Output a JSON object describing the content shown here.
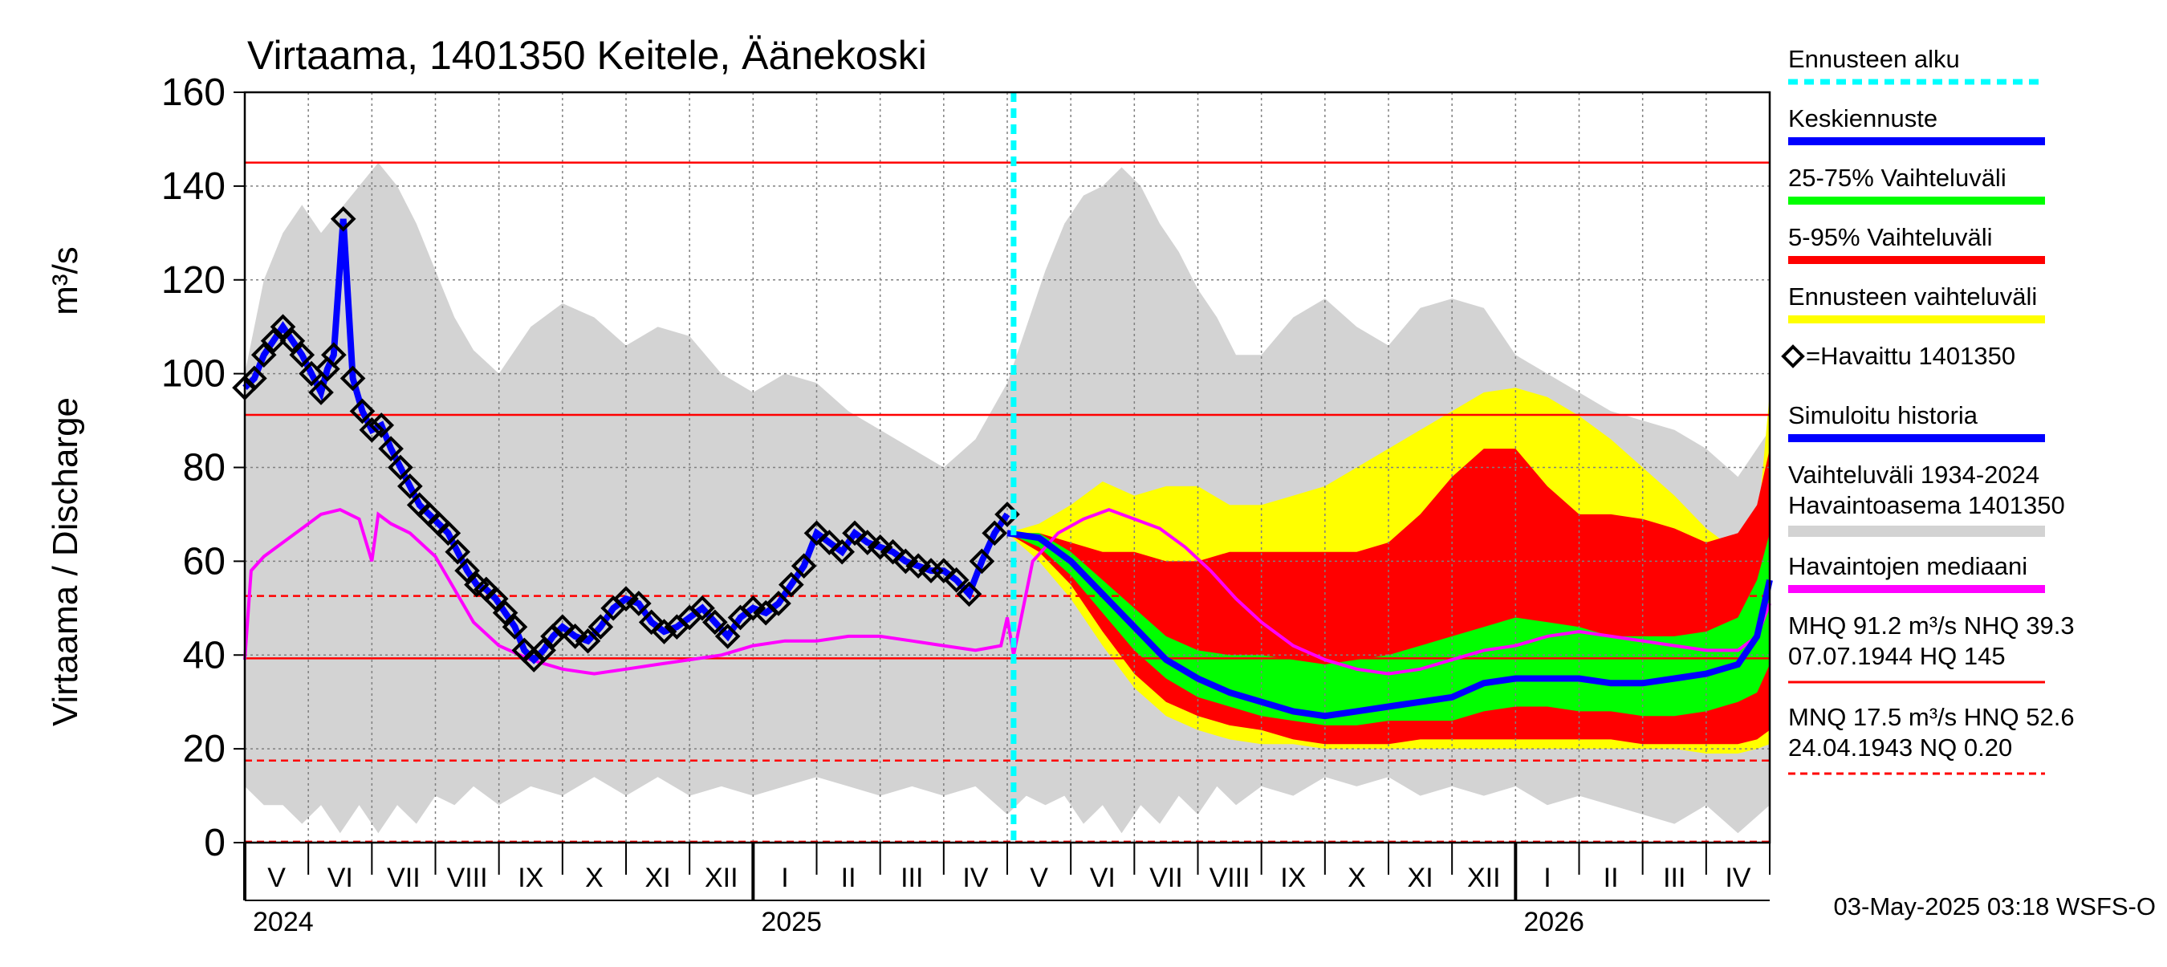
{
  "chart_data": {
    "type": "line",
    "title": "Virtaama, 1401350 Keitele, Äänekoski",
    "ylabel": "Virtaama / Discharge",
    "yunit": "m³/s",
    "ylim": [
      0,
      160
    ],
    "yticks": [
      "0",
      "20",
      "40",
      "60",
      "80",
      "100",
      "120",
      "140",
      "160"
    ],
    "yticks_values": [
      0,
      20,
      40,
      60,
      80,
      100,
      120,
      140,
      160
    ],
    "xlim": [
      0,
      24
    ],
    "month_labels": [
      "V",
      "VI",
      "VII",
      "VIII",
      "IX",
      "X",
      "XI",
      "XII",
      "I",
      "II",
      "III",
      "IV",
      "V",
      "VI",
      "VII",
      "VIII",
      "IX",
      "X",
      "XI",
      "XII",
      "I",
      "II",
      "III",
      "IV"
    ],
    "year_labels": [
      {
        "label": "2024",
        "at": 0
      },
      {
        "label": "2025",
        "at": 8
      },
      {
        "label": "2026",
        "at": 20
      }
    ],
    "forecast_start": 12.1,
    "reference_lines": [
      {
        "value": 145,
        "style": "solid"
      },
      {
        "value": 91.2,
        "style": "solid"
      },
      {
        "value": 52.6,
        "style": "dashed"
      },
      {
        "value": 39.3,
        "style": "solid"
      },
      {
        "value": 17.5,
        "style": "dashed"
      },
      {
        "value": 0.2,
        "style": "dashed"
      }
    ],
    "hist_range": {
      "name": "Vaihteluväli 1934-2024 Havaintoasema 1401350",
      "x": [
        0,
        0.3,
        0.6,
        0.9,
        1.2,
        1.5,
        1.8,
        2.1,
        2.4,
        2.7,
        3.0,
        3.3,
        3.6,
        4.0,
        4.5,
        5.0,
        5.5,
        6.0,
        6.5,
        7.0,
        7.5,
        8.0,
        8.5,
        9.0,
        9.5,
        10.0,
        10.5,
        11.0,
        11.5,
        12.0,
        12.3,
        12.6,
        12.9,
        13.2,
        13.5,
        13.8,
        14.1,
        14.4,
        14.7,
        15.0,
        15.3,
        15.6,
        16.0,
        16.5,
        17.0,
        17.5,
        18.0,
        18.5,
        19.0,
        19.5,
        20.0,
        20.5,
        21.0,
        21.5,
        22.0,
        22.5,
        23.0,
        23.5,
        24.0
      ],
      "upper": [
        100,
        120,
        130,
        136,
        130,
        135,
        140,
        145,
        140,
        132,
        122,
        112,
        105,
        100,
        110,
        115,
        112,
        106,
        110,
        108,
        100,
        96,
        100,
        98,
        92,
        88,
        84,
        80,
        86,
        98,
        110,
        122,
        132,
        138,
        140,
        144,
        140,
        132,
        126,
        118,
        112,
        104,
        104,
        112,
        116,
        110,
        106,
        114,
        116,
        114,
        104,
        100,
        96,
        92,
        90,
        88,
        84,
        78,
        88
      ],
      "lower": [
        12,
        8,
        8,
        4,
        8,
        2,
        8,
        2,
        8,
        4,
        10,
        8,
        12,
        8,
        12,
        10,
        14,
        10,
        14,
        10,
        12,
        10,
        12,
        14,
        12,
        10,
        12,
        10,
        12,
        6,
        10,
        8,
        10,
        4,
        8,
        2,
        8,
        4,
        10,
        6,
        12,
        8,
        12,
        10,
        14,
        12,
        14,
        10,
        12,
        10,
        12,
        8,
        10,
        8,
        6,
        4,
        8,
        2,
        8
      ]
    },
    "median": {
      "name": "Havaintojen mediaani",
      "x": [
        0,
        0.1,
        0.3,
        0.6,
        0.9,
        1.2,
        1.5,
        1.8,
        2.0,
        2.1,
        2.3,
        2.6,
        3.0,
        3.3,
        3.6,
        4.0,
        4.5,
        5.0,
        5.5,
        6.0,
        6.5,
        7.0,
        7.5,
        8.0,
        8.5,
        9.0,
        9.5,
        10.0,
        10.5,
        11.0,
        11.5,
        11.9,
        12.0,
        12.1,
        12.4,
        12.8,
        13.2,
        13.6,
        14.0,
        14.4,
        14.8,
        15.2,
        15.6,
        16.0,
        16.5,
        17.0,
        17.5,
        18.0,
        18.5,
        19.0,
        19.5,
        20.0,
        20.5,
        21.0,
        21.5,
        22.0,
        22.5,
        23.0,
        23.5,
        23.8,
        24.0
      ],
      "y": [
        39,
        58,
        61,
        64,
        67,
        70,
        71,
        69,
        60,
        70,
        68,
        66,
        61,
        54,
        47,
        42,
        39,
        37,
        36,
        37,
        38,
        39,
        40,
        42,
        43,
        43,
        44,
        44,
        43,
        42,
        41,
        42,
        48,
        40,
        60,
        66,
        69,
        71,
        69,
        67,
        63,
        58,
        52,
        47,
        42,
        39,
        37,
        36,
        37,
        39,
        41,
        42,
        44,
        45,
        44,
        43,
        42,
        41,
        41,
        44,
        51
      ]
    },
    "observed": {
      "name": "=Havaittu 1401350",
      "x": [
        0,
        0.15,
        0.3,
        0.45,
        0.6,
        0.75,
        0.9,
        1.05,
        1.2,
        1.3,
        1.4,
        1.55,
        1.7,
        1.85,
        2.0,
        2.15,
        2.3,
        2.45,
        2.6,
        2.75,
        2.9,
        3.05,
        3.2,
        3.35,
        3.5,
        3.65,
        3.8,
        3.95,
        4.1,
        4.25,
        4.4,
        4.55,
        4.7,
        4.85,
        5.0,
        5.2,
        5.4,
        5.6,
        5.8,
        6.0,
        6.2,
        6.4,
        6.6,
        6.8,
        7.0,
        7.2,
        7.4,
        7.6,
        7.8,
        8.0,
        8.2,
        8.4,
        8.6,
        8.8,
        9.0,
        9.2,
        9.4,
        9.6,
        9.8,
        10.0,
        10.2,
        10.4,
        10.6,
        10.8,
        11.0,
        11.2,
        11.4,
        11.6,
        11.8,
        12.0
      ],
      "y": [
        97,
        99,
        104,
        107,
        110,
        107,
        104,
        100,
        96,
        101,
        104,
        133,
        99,
        92,
        88,
        89,
        84,
        80,
        76,
        72,
        70,
        68,
        66,
        62,
        58,
        55,
        54,
        52,
        49,
        46,
        41,
        39,
        41,
        44,
        46,
        44,
        43,
        46,
        50,
        52,
        51,
        47,
        45,
        46,
        48,
        50,
        47,
        44,
        48,
        50,
        49,
        51,
        55,
        59,
        66,
        64,
        62,
        66,
        64,
        63,
        62,
        60,
        59,
        58,
        58,
        56,
        53,
        60,
        66,
        70
      ]
    },
    "forecast_mean": {
      "name": "Keskiennuste",
      "x": [
        12.0,
        12.5,
        13.0,
        13.5,
        14.0,
        14.5,
        15.0,
        15.5,
        16.0,
        16.5,
        17.0,
        17.5,
        18.0,
        18.5,
        19.0,
        19.5,
        20.0,
        20.5,
        21.0,
        21.5,
        22.0,
        22.5,
        23.0,
        23.5,
        23.8,
        24.0
      ],
      "y": [
        66,
        65,
        60,
        53,
        46,
        39,
        35,
        32,
        30,
        28,
        27,
        28,
        29,
        30,
        31,
        34,
        35,
        35,
        35,
        34,
        34,
        35,
        36,
        38,
        44,
        56
      ]
    },
    "band_25_75": {
      "name": "25-75% Vaihteluväli",
      "x": [
        12.0,
        12.5,
        13.0,
        13.5,
        14.0,
        14.5,
        15.0,
        15.5,
        16.0,
        16.5,
        17.0,
        17.5,
        18.0,
        18.5,
        19.0,
        19.5,
        20.0,
        20.5,
        21.0,
        21.5,
        22.0,
        22.5,
        23.0,
        23.5,
        23.8,
        24.0
      ],
      "upper": [
        66,
        66,
        62,
        56,
        50,
        44,
        41,
        40,
        40,
        39,
        38,
        39,
        40,
        42,
        44,
        46,
        48,
        47,
        46,
        44,
        44,
        44,
        45,
        48,
        56,
        66
      ],
      "lower": [
        66,
        63,
        57,
        49,
        41,
        35,
        31,
        29,
        27,
        26,
        25,
        25,
        26,
        26,
        26,
        28,
        29,
        29,
        28,
        28,
        27,
        27,
        28,
        30,
        32,
        38
      ]
    },
    "band_5_95": {
      "name": "5-95% Vaihteluväli",
      "x": [
        12.0,
        12.5,
        13.0,
        13.5,
        14.0,
        14.5,
        15.0,
        15.5,
        16.0,
        16.5,
        17.0,
        17.5,
        18.0,
        18.5,
        19.0,
        19.5,
        20.0,
        20.5,
        21.0,
        21.5,
        22.0,
        22.5,
        23.0,
        23.5,
        23.8,
        24.0
      ],
      "upper": [
        66,
        66,
        64,
        62,
        62,
        60,
        60,
        62,
        62,
        62,
        62,
        62,
        64,
        70,
        78,
        84,
        84,
        76,
        70,
        70,
        69,
        67,
        64,
        66,
        72,
        84
      ],
      "lower": [
        66,
        62,
        55,
        45,
        36,
        30,
        27,
        25,
        24,
        22,
        21,
        21,
        21,
        22,
        22,
        22,
        22,
        22,
        22,
        22,
        21,
        21,
        21,
        21,
        22,
        24
      ]
    },
    "forecast_range": {
      "name": "Ennusteen vaihteluväli",
      "x": [
        12.0,
        12.5,
        13.0,
        13.5,
        14.0,
        14.5,
        15.0,
        15.5,
        16.0,
        16.5,
        17.0,
        17.5,
        18.0,
        18.5,
        19.0,
        19.5,
        20.0,
        20.5,
        21.0,
        21.5,
        22.0,
        22.5,
        23.0,
        23.5,
        23.8,
        24.0
      ],
      "upper": [
        66,
        68,
        72,
        77,
        74,
        76,
        76,
        72,
        72,
        74,
        76,
        80,
        84,
        88,
        92,
        96,
        97,
        95,
        91,
        86,
        80,
        74,
        67,
        62,
        66,
        96
      ],
      "lower": [
        66,
        60,
        52,
        42,
        33,
        27,
        24,
        22,
        21,
        21,
        20,
        20,
        20,
        20,
        20,
        20,
        20,
        20,
        20,
        20,
        20,
        20,
        19,
        19,
        20,
        21
      ]
    },
    "legend": [
      {
        "label": "Ennusteen alku",
        "color": "#00ffff",
        "style": "dashed"
      },
      {
        "label": "Keskiennuste",
        "color": "#0000ff"
      },
      {
        "label": "25-75% Vaihteluväli",
        "color": "#00ff00"
      },
      {
        "label": "5-95% Vaihteluväli",
        "color": "#ff0000"
      },
      {
        "label": "Ennusteen vaihteluväli",
        "color": "#ffff00"
      },
      {
        "label": "=Havaittu 1401350",
        "color": "#000000",
        "style": "marker"
      },
      {
        "label": "Simuloitu historia",
        "color": "#0000ff"
      },
      {
        "label": "Vaihteluväli 1934-2024",
        "label2": " Havaintoasema 1401350",
        "color": "#d3d3d3"
      },
      {
        "label": "Havaintojen mediaani",
        "color": "#ff00ff"
      },
      {
        "label": "MHQ 91.2 m³/s NHQ 39.3",
        "label2": "07.07.1944 HQ  145",
        "color": "#ff0000"
      },
      {
        "label": "MNQ 17.5 m³/s HNQ 52.6",
        "label2": "24.04.1943 NQ 0.20",
        "color": "#ff0000",
        "style": "dashed"
      }
    ],
    "colors": {
      "grey": "#d3d3d3",
      "yellow": "#ffff00",
      "red": "#ff0000",
      "green": "#00ff00",
      "blue": "#0000ff",
      "magenta": "#ff00ff",
      "cyan": "#00ffff",
      "refline": "#ff0000",
      "grid": "#808080"
    },
    "footer": "03-May-2025 03:18 WSFS-O"
  }
}
